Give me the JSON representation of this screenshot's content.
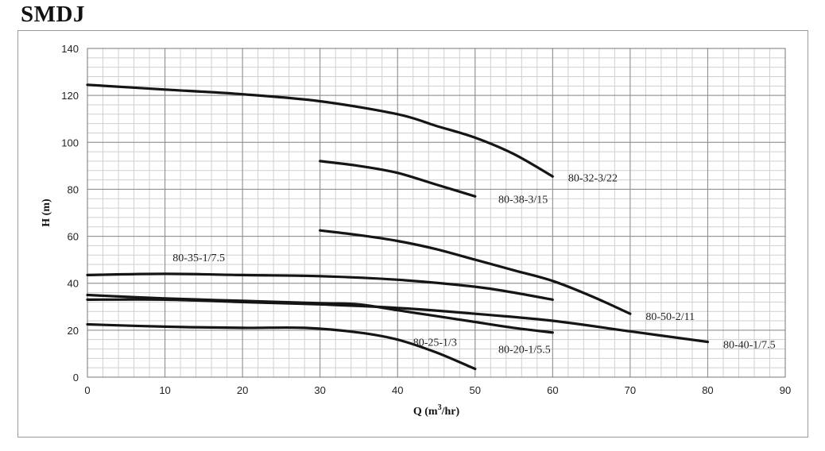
{
  "page": {
    "title": "SMDJ"
  },
  "chart_data": {
    "type": "line",
    "title": "SMDJ",
    "xlabel": "Q (m",
    "xlabel_sup": "3",
    "xlabel_tail": "/hr)",
    "ylabel": "H (m)",
    "xlim": [
      0,
      90
    ],
    "ylim": [
      0,
      140
    ],
    "xticks": [
      0,
      10,
      20,
      30,
      40,
      50,
      60,
      70,
      80,
      90
    ],
    "yticks": [
      0,
      20,
      40,
      60,
      80,
      100,
      120,
      140
    ],
    "x_minor_step": 2,
    "y_minor_step": 4,
    "grid": true,
    "series": [
      {
        "name": "80-32-3/22",
        "points": [
          [
            0,
            124.5
          ],
          [
            10,
            122.5
          ],
          [
            20,
            120.5
          ],
          [
            30,
            117.5
          ],
          [
            40,
            112
          ],
          [
            45,
            107
          ],
          [
            50,
            102
          ],
          [
            55,
            95
          ],
          [
            60,
            85.5
          ]
        ],
        "label_at": [
          62,
          85
        ]
      },
      {
        "name": "80-38-3/15",
        "points": [
          [
            30,
            92
          ],
          [
            35,
            90
          ],
          [
            40,
            87
          ],
          [
            45,
            82
          ],
          [
            50,
            77
          ]
        ],
        "label_at": [
          53,
          76
        ]
      },
      {
        "name": "80-50-2/11",
        "points": [
          [
            30,
            62.5
          ],
          [
            35,
            60.5
          ],
          [
            40,
            58
          ],
          [
            45,
            54.5
          ],
          [
            50,
            50
          ],
          [
            55,
            45.5
          ],
          [
            60,
            41
          ],
          [
            65,
            34.5
          ],
          [
            70,
            27
          ]
        ],
        "label_at": [
          72,
          26
        ]
      },
      {
        "name": "80-35-1/7.5",
        "points": [
          [
            0,
            43.5
          ],
          [
            10,
            44
          ],
          [
            20,
            43.5
          ],
          [
            30,
            43
          ],
          [
            40,
            41.5
          ],
          [
            50,
            38.5
          ],
          [
            55,
            36
          ],
          [
            60,
            33
          ]
        ],
        "label_at": [
          11,
          51
        ]
      },
      {
        "name": "80-40-1/7.5",
        "points": [
          [
            0,
            33
          ],
          [
            10,
            33
          ],
          [
            20,
            32
          ],
          [
            30,
            31
          ],
          [
            40,
            29.5
          ],
          [
            50,
            27
          ],
          [
            60,
            24
          ],
          [
            70,
            19.5
          ],
          [
            80,
            15
          ]
        ],
        "label_at": [
          82,
          14
        ]
      },
      {
        "name": "80-20-1/5.5",
        "points": [
          [
            0,
            35
          ],
          [
            10,
            33.5
          ],
          [
            20,
            32.5
          ],
          [
            30,
            31.5
          ],
          [
            35,
            31
          ],
          [
            40,
            28.5
          ],
          [
            45,
            26
          ],
          [
            50,
            23.5
          ],
          [
            55,
            21
          ],
          [
            60,
            19
          ]
        ],
        "label_at": [
          53,
          12
        ]
      },
      {
        "name": "80-25-1/3",
        "points": [
          [
            0,
            22.5
          ],
          [
            10,
            21.5
          ],
          [
            20,
            21
          ],
          [
            28,
            21
          ],
          [
            35,
            19
          ],
          [
            40,
            16
          ],
          [
            45,
            10.5
          ],
          [
            50,
            3.5
          ]
        ],
        "label_at": [
          42,
          15
        ]
      }
    ]
  }
}
